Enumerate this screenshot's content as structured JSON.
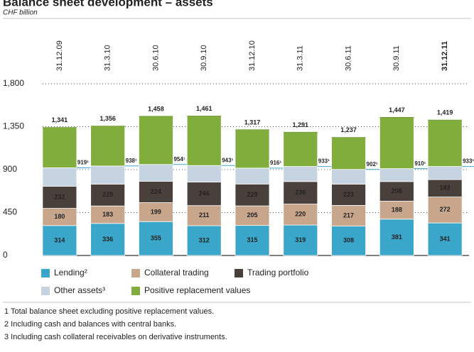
{
  "chart_data": {
    "type": "stacked-bar",
    "title": "Balance sheet development – assets",
    "subtitle": "CHF billion",
    "categories": [
      "31.12.09",
      "31.3.10",
      "30.6.10",
      "30.9.10",
      "31.12.10",
      "31.3.11",
      "30.6.11",
      "30.9.11",
      "31.12.11"
    ],
    "series": [
      {
        "name": "Lending²",
        "color": "#3aa6c9",
        "values": [
          314,
          336,
          355,
          312,
          315,
          319,
          308,
          381,
          341
        ]
      },
      {
        "name": "Collateral trading",
        "color": "#c8a68c",
        "values": [
          180,
          183,
          199,
          211,
          205,
          220,
          217,
          188,
          272
        ]
      },
      {
        "name": "Trading portfolio",
        "color": "#4a403b",
        "values": [
          232,
          229,
          224,
          246,
          229,
          236,
          223,
          206,
          182
        ]
      },
      {
        "name": "Other assets³",
        "color": "#c5d4e0",
        "values": [
          193,
          190,
          176,
          174,
          167,
          158,
          154,
          135,
          138
        ]
      },
      {
        "name": "Positive replacement values",
        "color": "#80ad3c",
        "values": [
          422,
          418,
          504,
          518,
          401,
          358,
          335,
          537,
          486
        ]
      }
    ],
    "totals": {
      "values": [
        1341,
        1356,
        1458,
        1461,
        1317,
        1291,
        1237,
        1447,
        1419
      ],
      "value_labels": [
        "1,341",
        "1,356",
        "1,458",
        "1,461",
        "1,317",
        "1,291",
        "1,237",
        "1,447",
        "1,419"
      ]
    },
    "totals_excluding_prv": {
      "values": [
        919,
        938,
        954,
        943,
        916,
        933,
        902,
        910,
        933
      ],
      "value_labels": [
        "919¹",
        "938¹",
        "954¹",
        "943¹",
        "916¹",
        "933¹",
        "902¹",
        "910¹",
        "933¹"
      ]
    },
    "ylim": [
      0,
      1800
    ],
    "yticks": [
      0,
      450,
      900,
      {
        "value": 1350,
        "label": "1,350"
      },
      {
        "value": 1800,
        "label": "1,800"
      }
    ],
    "grid": true,
    "footnotes": [
      "1 Total balance sheet excluding positive replacement values.",
      "2 Including cash and balances with central banks.",
      "3 Including cash collateral receivables on derivative instruments."
    ]
  }
}
